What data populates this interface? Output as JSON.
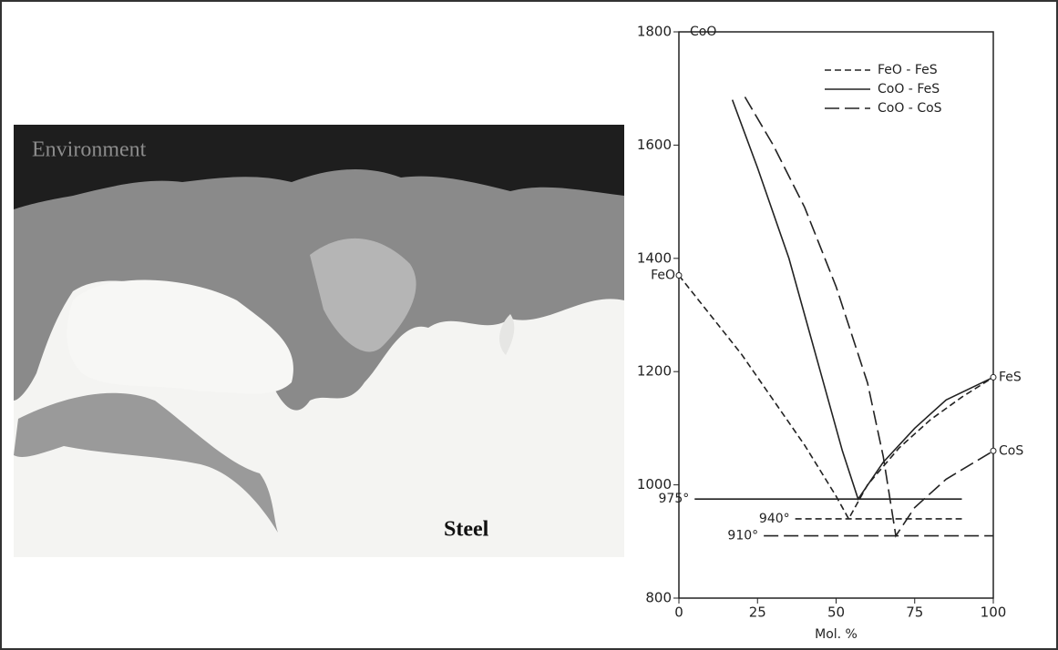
{
  "micrograph": {
    "top_label": "Environment",
    "bottom_label": "Steel"
  },
  "chart_data": {
    "type": "line",
    "xlabel": "Mol. %",
    "xlim": [
      0,
      100
    ],
    "xticks": [
      0,
      25,
      50,
      75,
      100
    ],
    "ylim": [
      800,
      1800
    ],
    "yticks": [
      800,
      1000,
      1200,
      1400,
      1600,
      1800
    ],
    "legend": "upper right",
    "series": [
      {
        "name": "FeO - FeS",
        "color": "#222222",
        "dash": "short",
        "label": "940°",
        "x": [
          0,
          10,
          20,
          30,
          40,
          50,
          54,
          60,
          70,
          80,
          90,
          100,
          null,
          37,
          90
        ],
        "values": [
          1370,
          1300,
          1230,
          1150,
          1070,
          980,
          940,
          1000,
          1065,
          1115,
          1155,
          1190,
          null,
          940,
          940
        ]
      },
      {
        "name": "CoO - FeS",
        "color": "#222222",
        "dash": "solid",
        "label": "975°",
        "x": [
          17,
          25,
          35,
          45,
          52,
          57,
          65,
          75,
          85,
          100,
          null,
          5,
          90
        ],
        "values": [
          1680,
          1560,
          1400,
          1200,
          1060,
          975,
          1040,
          1100,
          1150,
          1190,
          null,
          975,
          975
        ]
      },
      {
        "name": "CoO - CoS",
        "color": "#222222",
        "dash": "long",
        "label": "910°",
        "x": [
          21,
          30,
          40,
          50,
          60,
          65,
          69,
          75,
          85,
          100,
          null,
          27,
          100
        ],
        "values": [
          1685,
          1600,
          1490,
          1350,
          1180,
          1050,
          910,
          960,
          1010,
          1060,
          null,
          910,
          910
        ]
      }
    ],
    "annotations": [
      {
        "text": "CoO",
        "x": 0,
        "y": 1800
      },
      {
        "text": "FeO",
        "x": 0,
        "y": 1370
      },
      {
        "text": "FeS",
        "x": 100,
        "y": 1190
      },
      {
        "text": "CoS",
        "x": 100,
        "y": 1060
      }
    ]
  }
}
